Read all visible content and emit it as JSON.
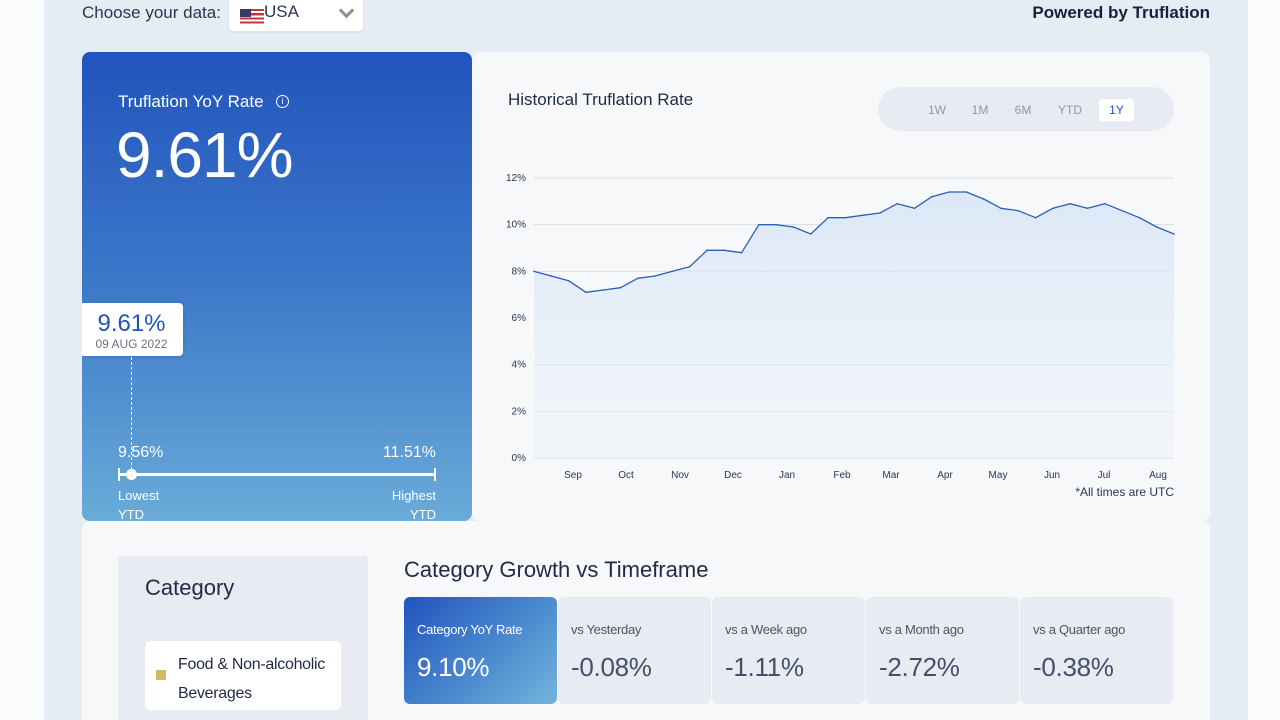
{
  "topbar": {
    "choose_label": "Choose your data:",
    "country": "USA",
    "flag_icon": "us-flag-icon",
    "powered_by": "Powered by Truflation"
  },
  "summary": {
    "title": "Truflation YoY Rate",
    "info_icon": "info-icon",
    "value": "9.61%",
    "tooltip_value": "9.61%",
    "tooltip_date": "09 AUG 2022",
    "low_value": "9.56%",
    "high_value": "11.51%",
    "low_label": "Lowest",
    "high_label": "Highest",
    "period_label": "YTD"
  },
  "history": {
    "title": "Historical Truflation Rate",
    "timeframes": [
      "1W",
      "1M",
      "6M",
      "YTD",
      "1Y"
    ],
    "active_timeframe": "1Y",
    "utc_note": "*All times are UTC"
  },
  "chart_data": {
    "type": "area",
    "title": "Historical Truflation Rate",
    "xlabel": "",
    "ylabel": "",
    "ylim": [
      0,
      12
    ],
    "y_ticks": [
      "0%",
      "2%",
      "4%",
      "6%",
      "8%",
      "10%",
      "12%"
    ],
    "x_tick_labels": [
      "Sep",
      "Oct",
      "Nov",
      "Dec",
      "Jan",
      "Feb",
      "Mar",
      "Apr",
      "May",
      "Jun",
      "Jul",
      "Aug"
    ],
    "grid": true,
    "x": [
      "Aug 10",
      "Aug 20",
      "Sep 1",
      "Sep 15",
      "Sep 25",
      "Oct 5",
      "Oct 15",
      "Oct 25",
      "Nov 5",
      "Nov 15",
      "Nov 20",
      "Dec 1",
      "Dec 10",
      "Dec 15",
      "Dec 20",
      "Jan 1",
      "Jan 10",
      "Jan 20",
      "Feb 1",
      "Feb 10",
      "Feb 20",
      "Mar 1",
      "Mar 10",
      "Mar 20",
      "Apr 1",
      "Apr 10",
      "Apr 20",
      "May 1",
      "May 10",
      "May 20",
      "Jun 1",
      "Jun 10",
      "Jun 20",
      "Jul 1",
      "Jul 10",
      "Jul 20",
      "Aug 1",
      "Aug 9"
    ],
    "series": [
      {
        "values": [
          8.0,
          7.8,
          7.6,
          7.1,
          7.2,
          7.3,
          7.7,
          7.8,
          8.0,
          8.2,
          8.9,
          8.9,
          8.8,
          10.0,
          10.0,
          9.9,
          9.6,
          10.3,
          10.3,
          10.4,
          10.5,
          10.9,
          10.7,
          11.2,
          11.4,
          11.4,
          11.1,
          10.7,
          10.6,
          10.3,
          10.7,
          10.9,
          10.7,
          10.9,
          10.6,
          10.3,
          9.9,
          9.6
        ]
      }
    ]
  },
  "category": {
    "heading": "Category",
    "selected": "Food & Non-alcoholic Beverages",
    "swatch_color": "#d4b860"
  },
  "growth": {
    "heading": "Category Growth vs Timeframe",
    "cards": [
      {
        "label": "Category YoY Rate",
        "value": "9.10%"
      },
      {
        "label": "vs Yesterday",
        "value": "-0.08%"
      },
      {
        "label": "vs a Week ago",
        "value": "-1.11%"
      },
      {
        "label": "vs a Month ago",
        "value": "-2.72%"
      },
      {
        "label": "vs a Quarter ago",
        "value": "-0.38%"
      }
    ]
  },
  "colors": {
    "brand_blue": "#2254bd",
    "line": "#2b5fb8",
    "page_background": "#e6ecf4"
  }
}
